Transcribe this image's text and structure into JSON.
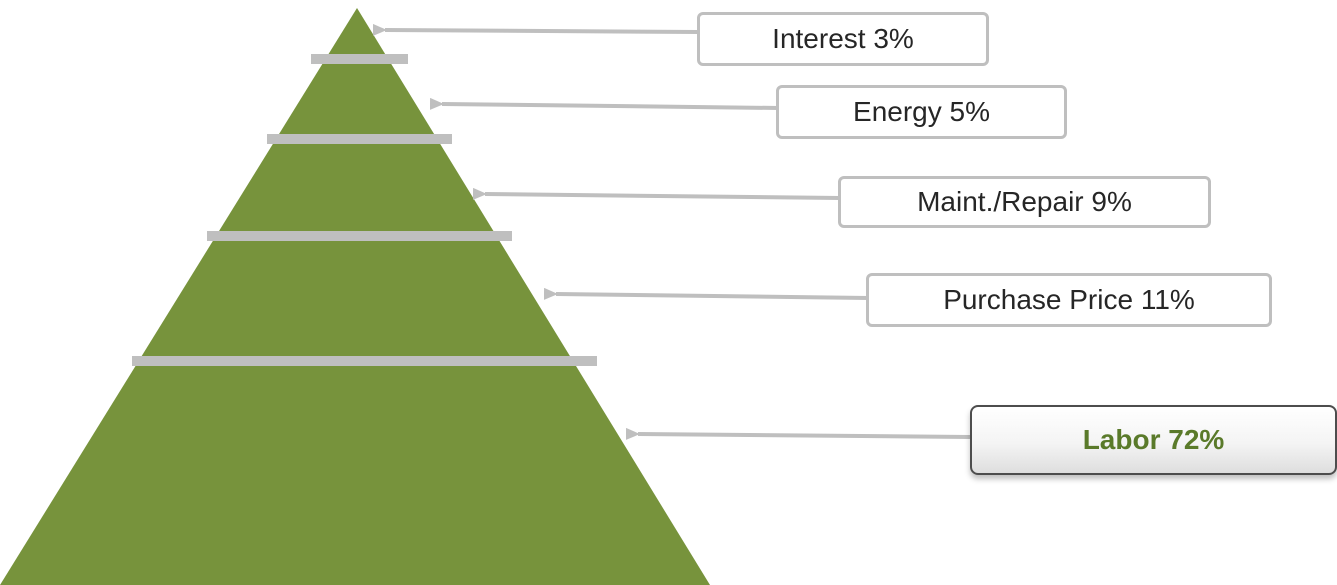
{
  "colors": {
    "pyramid_fill": "#77933c",
    "divider": "#bfbfbf",
    "arrow": "#bfbfbf",
    "highlight_text": "#5a7a2a"
  },
  "labels": [
    {
      "text": "Interest 3%",
      "highlight": false
    },
    {
      "text": "Energy 5%",
      "highlight": false
    },
    {
      "text": "Maint./Repair 9%",
      "highlight": false
    },
    {
      "text": "Purchase Price 11%",
      "highlight": false
    },
    {
      "text": "Labor 72%",
      "highlight": true
    }
  ]
}
